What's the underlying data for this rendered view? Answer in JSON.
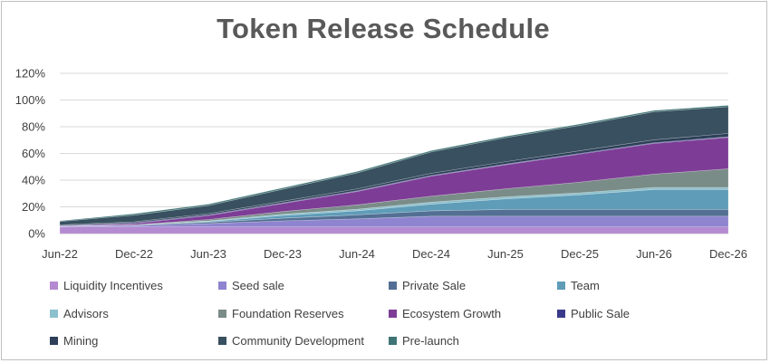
{
  "chart_data": {
    "type": "area",
    "stacked": true,
    "title": "Token Release Schedule",
    "xlabel": "",
    "ylabel": "",
    "ylim": [
      0,
      1.2
    ],
    "yticks": [
      "0%",
      "20%",
      "40%",
      "60%",
      "80%",
      "100%",
      "120%"
    ],
    "categories": [
      "Jun-22",
      "Dec-22",
      "Jun-23",
      "Dec-23",
      "Jun-24",
      "Dec-24",
      "Jun-25",
      "Dec-25",
      "Jun-26",
      "Dec-26"
    ],
    "legend_position": "bottom",
    "series": [
      {
        "name": "Liquidity Incentives",
        "color": "#b48ad0",
        "values": [
          0.05,
          0.05,
          0.05,
          0.05,
          0.05,
          0.05,
          0.05,
          0.05,
          0.05,
          0.05
        ]
      },
      {
        "name": "Seed sale",
        "color": "#8f84cf",
        "values": [
          0.005,
          0.01,
          0.025,
          0.045,
          0.06,
          0.08,
          0.08,
          0.08,
          0.08,
          0.08
        ]
      },
      {
        "name": "Private Sale",
        "color": "#546f94",
        "values": [
          0.0,
          0.005,
          0.01,
          0.02,
          0.03,
          0.04,
          0.05,
          0.05,
          0.05,
          0.05
        ]
      },
      {
        "name": "Team",
        "color": "#5f9cb8",
        "values": [
          0.0,
          0.0,
          0.005,
          0.02,
          0.03,
          0.05,
          0.08,
          0.11,
          0.15,
          0.15
        ]
      },
      {
        "name": "Advisors",
        "color": "#8cc0cc",
        "values": [
          0.0,
          0.0,
          0.005,
          0.01,
          0.012,
          0.015,
          0.015,
          0.015,
          0.015,
          0.015
        ]
      },
      {
        "name": "Foundation Reserves",
        "color": "#7a8c88",
        "values": [
          0.0,
          0.0,
          0.01,
          0.02,
          0.033,
          0.045,
          0.06,
          0.08,
          0.1,
          0.14
        ]
      },
      {
        "name": "Ecosystem Growth",
        "color": "#7d3c96",
        "values": [
          0.0,
          0.01,
          0.03,
          0.06,
          0.1,
          0.15,
          0.18,
          0.21,
          0.23,
          0.235
        ]
      },
      {
        "name": "Public Sale",
        "color": "#3a3a8c",
        "values": [
          0.005,
          0.005,
          0.005,
          0.005,
          0.005,
          0.005,
          0.005,
          0.005,
          0.005,
          0.005
        ]
      },
      {
        "name": "Mining",
        "color": "#2e4059",
        "values": [
          0.005,
          0.008,
          0.01,
          0.012,
          0.014,
          0.016,
          0.018,
          0.02,
          0.022,
          0.025
        ]
      },
      {
        "name": "Community Development",
        "color": "#38505f",
        "values": [
          0.025,
          0.05,
          0.06,
          0.09,
          0.12,
          0.16,
          0.18,
          0.19,
          0.21,
          0.2
        ]
      },
      {
        "name": "Pre-launch",
        "color": "#3f7474",
        "values": [
          0.005,
          0.01,
          0.01,
          0.01,
          0.01,
          0.01,
          0.01,
          0.01,
          0.01,
          0.01
        ]
      }
    ]
  }
}
